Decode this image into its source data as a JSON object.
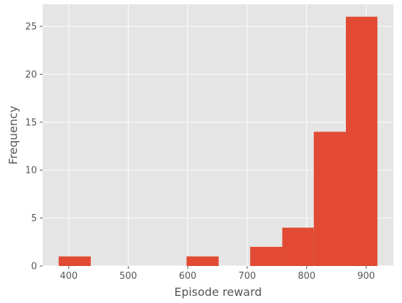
{
  "chart_data": {
    "type": "bar",
    "bins": [
      {
        "x0": 383,
        "x1": 437,
        "value": 1
      },
      {
        "x0": 437,
        "x1": 491,
        "value": 0
      },
      {
        "x0": 491,
        "x1": 544,
        "value": 0
      },
      {
        "x0": 544,
        "x1": 598,
        "value": 0
      },
      {
        "x0": 598,
        "x1": 652,
        "value": 1
      },
      {
        "x0": 652,
        "x1": 705,
        "value": 0
      },
      {
        "x0": 705,
        "x1": 759,
        "value": 2
      },
      {
        "x0": 759,
        "x1": 812,
        "value": 4
      },
      {
        "x0": 812,
        "x1": 866,
        "value": 14
      },
      {
        "x0": 866,
        "x1": 919,
        "value": 26
      }
    ],
    "xlabel": "Episode reward",
    "ylabel": "Frequency",
    "xlim": [
      356,
      946
    ],
    "ylim": [
      0,
      27.3
    ],
    "xticks": [
      400,
      500,
      600,
      700,
      800,
      900
    ],
    "yticks": [
      0,
      5,
      10,
      15,
      20,
      25
    ],
    "grid": true,
    "colors": {
      "bar": "#E24A33",
      "background": "#E5E5E5",
      "grid": "#FFFFFF",
      "text": "#555555"
    }
  }
}
